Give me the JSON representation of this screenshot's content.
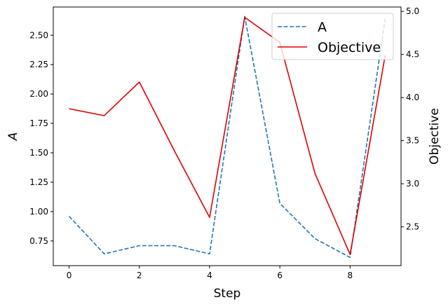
{
  "chart_data": {
    "type": "line",
    "x": [
      0,
      1,
      2,
      3,
      4,
      5,
      6,
      7,
      8,
      9
    ],
    "xlabel": "Step",
    "xlim": [
      -0.45,
      9.45
    ],
    "xticks": [
      0,
      2,
      4,
      6,
      8
    ],
    "y_left": {
      "label": "A",
      "lim": [
        0.54,
        2.74
      ],
      "ticks": [
        0.75,
        1.0,
        1.25,
        1.5,
        1.75,
        2.0,
        2.25,
        2.5
      ],
      "tick_labels": [
        "0.75",
        "1.00",
        "1.25",
        "1.50",
        "1.75",
        "2.00",
        "2.25",
        "2.50"
      ]
    },
    "y_right": {
      "label": "Objective",
      "lim": [
        2.05,
        5.05
      ],
      "ticks": [
        2.5,
        3.0,
        3.5,
        4.0,
        4.5,
        5.0
      ],
      "tick_labels": [
        "2.5",
        "3.0",
        "3.5",
        "4.0",
        "4.5",
        "5.0"
      ]
    },
    "series": [
      {
        "name": "A",
        "axis": "left",
        "style": "dashed",
        "color": "#1f77b4",
        "values": [
          0.96,
          0.64,
          0.71,
          0.71,
          0.64,
          2.66,
          1.07,
          0.77,
          0.61,
          2.64
        ]
      },
      {
        "name": "Objective",
        "axis": "right",
        "style": "solid",
        "color": "#e00000",
        "values": [
          3.87,
          3.79,
          4.18,
          3.38,
          2.61,
          4.93,
          4.64,
          3.12,
          2.18,
          4.49
        ]
      }
    ],
    "legend_position": "top-right",
    "grid": false
  }
}
